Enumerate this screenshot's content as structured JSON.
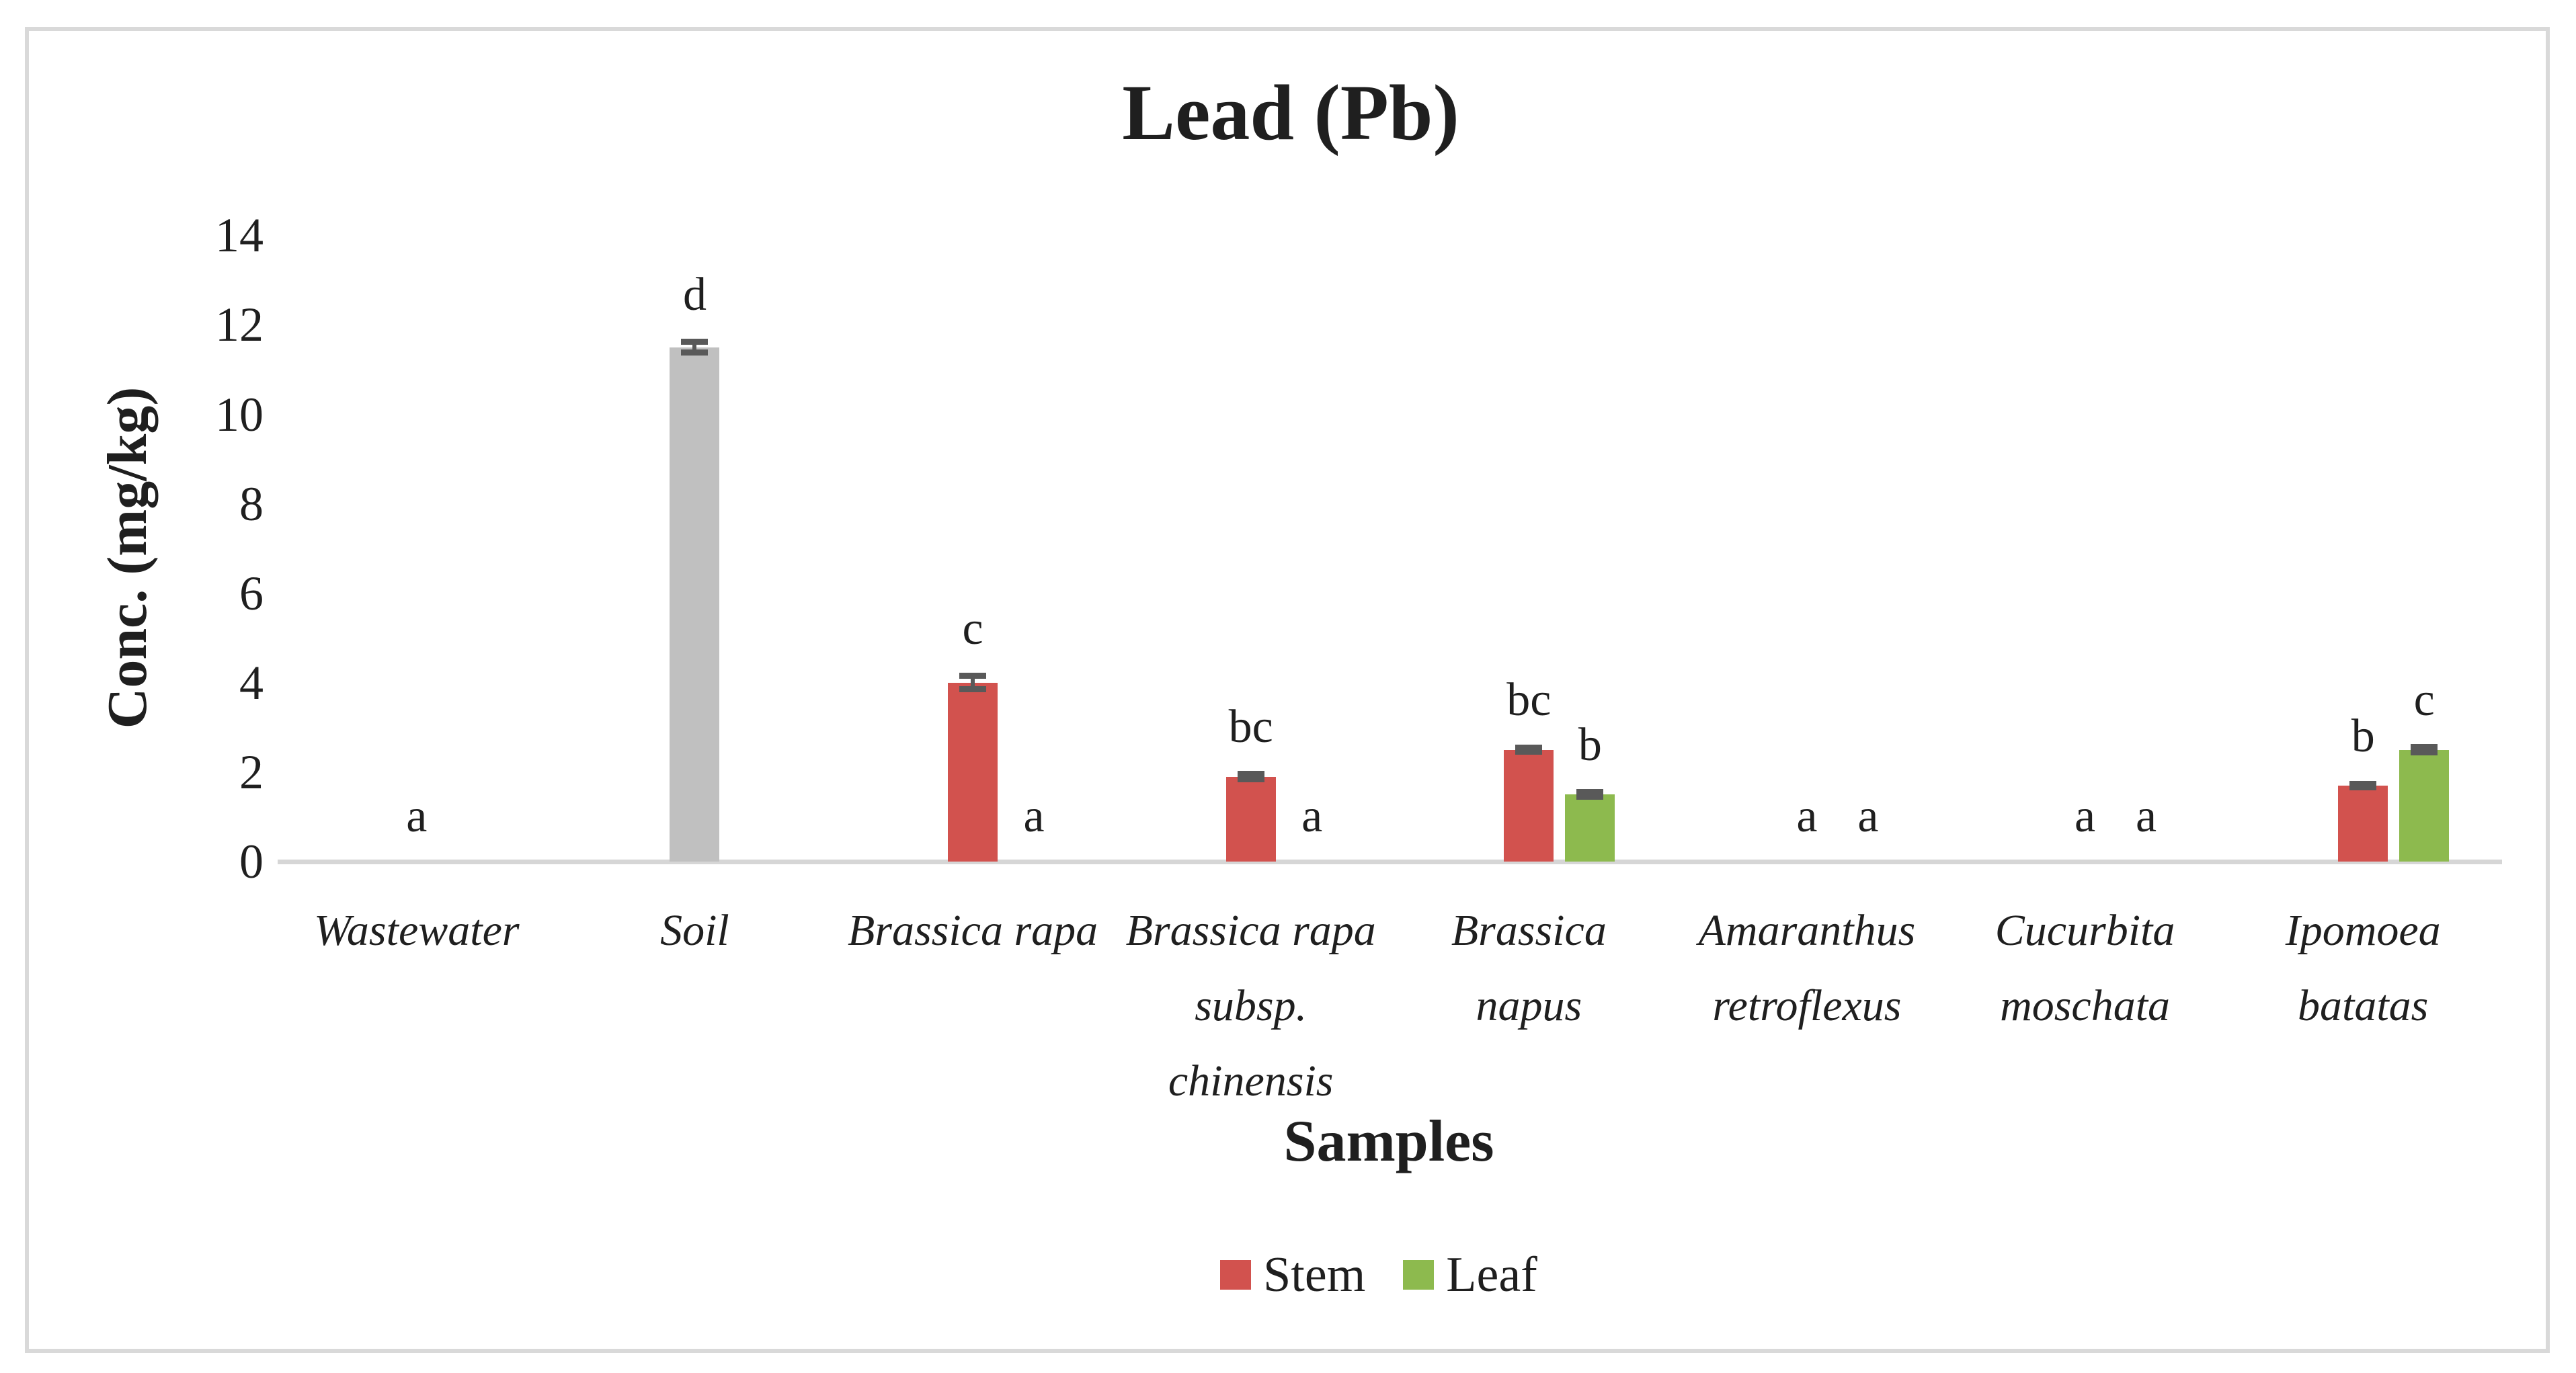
{
  "chart_data": {
    "type": "bar",
    "title": "Lead (Pb)",
    "xlabel": "Samples",
    "ylabel": "Conc. (mg/kg)",
    "ylim": [
      0,
      14
    ],
    "yticks": [
      0,
      2,
      4,
      6,
      8,
      10,
      12,
      14
    ],
    "grid": false,
    "legend_position": "bottom-center",
    "categories": [
      "Wastewater",
      "Soil",
      "Brassica rapa",
      "Brassica rapa subsp. chinensis",
      "Brassica napus",
      "Amaranthus retroflexus",
      "Cucurbita moschata",
      "Ipomoea batatas"
    ],
    "series": [
      {
        "name": "Stem",
        "color": "#D2524E"
      },
      {
        "name": "Leaf",
        "color": "#8DBA4E"
      }
    ],
    "colors": {
      "Stem": "#D2524E",
      "Leaf": "#8DBA4E",
      "Soil": "#C0C0C0",
      "error": "#595959",
      "axis": "#D6D6D6",
      "text": "#1f1f1f",
      "frame": "#D9D9D9"
    },
    "groups": [
      {
        "category": "Wastewater",
        "label_lines": [
          "Wastewater"
        ],
        "bars": [
          {
            "series": "Stem",
            "value": 0,
            "err": 0,
            "letter": "a"
          }
        ]
      },
      {
        "category": "Soil",
        "label_lines": [
          "Soil"
        ],
        "bars": [
          {
            "series": "Soil",
            "value": 11.5,
            "err": 0.12,
            "letter": "d"
          }
        ]
      },
      {
        "category": "Brassica rapa",
        "label_lines": [
          "Brassica rapa"
        ],
        "bars": [
          {
            "series": "Stem",
            "value": 4.0,
            "err": 0.15,
            "letter": "c"
          },
          {
            "series": "Leaf",
            "value": 0,
            "err": 0,
            "letter": "a"
          }
        ]
      },
      {
        "category": "Brassica rapa subsp. chinensis",
        "label_lines": [
          "Brassica rapa",
          "subsp.",
          "chinensis"
        ],
        "bars": [
          {
            "series": "Stem",
            "value": 1.9,
            "err": 0.06,
            "letter": "bc"
          },
          {
            "series": "Leaf",
            "value": 0,
            "err": 0,
            "letter": "a"
          }
        ]
      },
      {
        "category": "Brassica napus",
        "label_lines": [
          "Brassica",
          "napus"
        ],
        "bars": [
          {
            "series": "Stem",
            "value": 2.5,
            "err": 0.05,
            "letter": "bc"
          },
          {
            "series": "Leaf",
            "value": 1.5,
            "err": 0.05,
            "letter": "b"
          }
        ]
      },
      {
        "category": "Amaranthus retroflexus",
        "label_lines": [
          "Amaranthus",
          "retroflexus"
        ],
        "bars": [
          {
            "series": "Stem",
            "value": 0,
            "err": 0,
            "letter": "a"
          },
          {
            "series": "Leaf",
            "value": 0,
            "err": 0,
            "letter": "a"
          }
        ]
      },
      {
        "category": "Cucurbita moschata",
        "label_lines": [
          "Cucurbita",
          "moschata"
        ],
        "bars": [
          {
            "series": "Stem",
            "value": 0,
            "err": 0,
            "letter": "a"
          },
          {
            "series": "Leaf",
            "value": 0,
            "err": 0,
            "letter": "a"
          }
        ]
      },
      {
        "category": "Ipomoea batatas",
        "label_lines": [
          "Ipomoea",
          "batatas"
        ],
        "bars": [
          {
            "series": "Stem",
            "value": 1.7,
            "err": 0.04,
            "letter": "b"
          },
          {
            "series": "Leaf",
            "value": 2.5,
            "err": 0.06,
            "letter": "c"
          }
        ]
      }
    ]
  }
}
